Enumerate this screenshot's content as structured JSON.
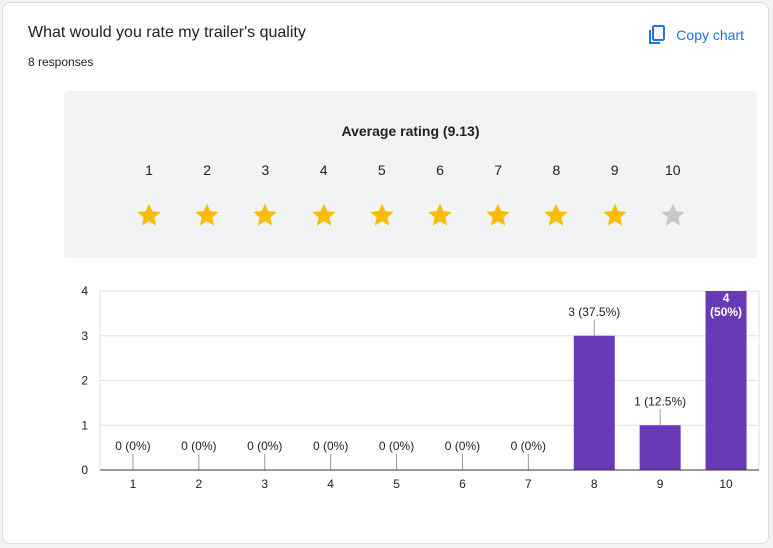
{
  "card": {
    "title": "What would you rate my trailer's quality",
    "responses": "8 responses",
    "copy_label": "Copy chart",
    "copy_icon": "copy-icon"
  },
  "rating": {
    "title": "Average rating (9.13)",
    "value": 9.13,
    "scale": [
      1,
      2,
      3,
      4,
      5,
      6,
      7,
      8,
      9,
      10
    ],
    "filled_stars": 9,
    "star_color": "#fbbc04",
    "empty_star_color": "#c8c8c8"
  },
  "chart_data": {
    "type": "bar",
    "categories": [
      "1",
      "2",
      "3",
      "4",
      "5",
      "6",
      "7",
      "8",
      "9",
      "10"
    ],
    "values": [
      0,
      0,
      0,
      0,
      0,
      0,
      0,
      3,
      1,
      4
    ],
    "labels": [
      "0 (0%)",
      "0 (0%)",
      "0 (0%)",
      "0 (0%)",
      "0 (0%)",
      "0 (0%)",
      "0 (0%)",
      "3 (37.5%)",
      "1 (12.5%)",
      "4 (50%)"
    ],
    "yticks": [
      0,
      1,
      2,
      3,
      4
    ],
    "ylim": [
      0,
      4
    ],
    "bar_color": "#673ab7",
    "grid": true,
    "xlabel": "",
    "ylabel": ""
  }
}
